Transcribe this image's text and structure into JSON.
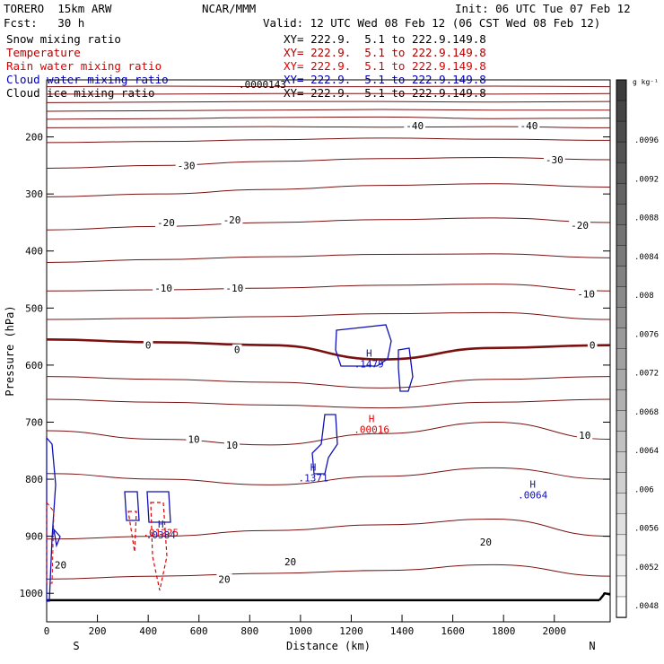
{
  "header": {
    "model": "TORERO  15km ARW",
    "center": "NCAR/MMM",
    "init": "Init: 06 UTC Tue 07 Feb 12",
    "fcst": "Fcst:   30 h",
    "valid": "Valid: 12 UTC Wed 08 Feb 12 (06 CST Wed 08 Feb 12)"
  },
  "fields": [
    {
      "label": "Snow mixing ratio",
      "xy": "XY= 222.9.  5.1 to 222.9.149.8",
      "color": "#000000"
    },
    {
      "label": "Temperature",
      "xy": "XY= 222.9.  5.1 to 222.9.149.8",
      "color": "#b00000"
    },
    {
      "label": "Rain water mixing ratio",
      "xy": "XY= 222.9.  5.1 to 222.9.149.8",
      "color": "#e00000"
    },
    {
      "label": "Cloud water mixing ratio",
      "xy": "XY= 222.9.  5.1 to 222.9.149.8",
      "color": "#0000b4"
    },
    {
      "label": "Cloud ice mixing ratio",
      "xy": "XY= 222.9.  5.1 to 222.9.149.8",
      "color": "#000000"
    }
  ],
  "colors": {
    "temperature": "#7a1010",
    "freezing": "#7a1010",
    "rain": "#e00000",
    "cloud_water": "#1010b4",
    "ground": "#000000"
  },
  "chart_data": {
    "type": "contour",
    "xlabel": "Distance (km)",
    "ylabel": "Pressure (hPa)",
    "xlim": [
      0,
      2220
    ],
    "ylim": [
      1050,
      100
    ],
    "xticks": [
      0,
      200,
      400,
      600,
      800,
      1000,
      1200,
      1400,
      1600,
      1800,
      2000
    ],
    "yticks": [
      200,
      300,
      400,
      500,
      600,
      700,
      800,
      900,
      1000
    ],
    "end_labels": {
      "left": "S",
      "right": "N"
    },
    "temperature_contours": [
      {
        "value": null,
        "p": [
          112,
          111,
          112,
          112,
          111,
          112
        ]
      },
      {
        "value": null,
        "p": [
          125,
          125,
          124,
          124,
          125,
          124
        ]
      },
      {
        "value": null,
        "p": [
          140,
          139,
          138,
          138,
          139,
          138
        ]
      },
      {
        "value": null,
        "p": [
          155,
          154,
          153,
          152,
          153,
          153
        ]
      },
      {
        "value": null,
        "p": [
          169,
          168,
          166,
          165,
          168,
          167
        ]
      },
      {
        "value": -40,
        "p": [
          184,
          183,
          182,
          183,
          182,
          184
        ]
      },
      {
        "value": null,
        "p": [
          210,
          208,
          205,
          202,
          204,
          206
        ]
      },
      {
        "value": -30,
        "p": [
          255,
          250,
          243,
          238,
          236,
          240
        ]
      },
      {
        "value": null,
        "p": [
          305,
          300,
          292,
          285,
          282,
          288
        ]
      },
      {
        "value": -20,
        "p": [
          363,
          357,
          350,
          345,
          342,
          350
        ]
      },
      {
        "value": null,
        "p": [
          420,
          415,
          410,
          406,
          405,
          412
        ]
      },
      {
        "value": -10,
        "p": [
          470,
          468,
          465,
          460,
          458,
          470
        ]
      },
      {
        "value": null,
        "p": [
          520,
          518,
          515,
          510,
          508,
          520
        ]
      },
      {
        "value": 0,
        "p": [
          555,
          560,
          565,
          590,
          570,
          565
        ]
      },
      {
        "value": null,
        "p": [
          620,
          625,
          630,
          640,
          625,
          620
        ]
      },
      {
        "value": null,
        "p": [
          660,
          665,
          670,
          675,
          665,
          660
        ]
      },
      {
        "value": 10,
        "p": [
          715,
          730,
          740,
          720,
          700,
          730
        ]
      },
      {
        "value": null,
        "p": [
          790,
          800,
          810,
          795,
          780,
          800
        ]
      },
      {
        "value": 20,
        "p": [
          905,
          900,
          890,
          880,
          870,
          900
        ]
      },
      {
        "value": null,
        "p": [
          975,
          970,
          965,
          960,
          950,
          970
        ]
      }
    ],
    "contour_labels": [
      {
        "x": 1450,
        "p": 180,
        "text": "-40"
      },
      {
        "x": 1900,
        "p": 180,
        "text": "-40"
      },
      {
        "x": 550,
        "p": 250,
        "text": "-30"
      },
      {
        "x": 2000,
        "p": 240,
        "text": "-30"
      },
      {
        "x": 470,
        "p": 350,
        "text": "-20"
      },
      {
        "x": 730,
        "p": 345,
        "text": "-20"
      },
      {
        "x": 2100,
        "p": 355,
        "text": "-20"
      },
      {
        "x": 460,
        "p": 465,
        "text": "-10"
      },
      {
        "x": 740,
        "p": 465,
        "text": "-10"
      },
      {
        "x": 2125,
        "p": 475,
        "text": "-10"
      },
      {
        "x": 400,
        "p": 565,
        "text": "0"
      },
      {
        "x": 750,
        "p": 573,
        "text": "0"
      },
      {
        "x": 2150,
        "p": 565,
        "text": "0"
      },
      {
        "x": 580,
        "p": 730,
        "text": "10"
      },
      {
        "x": 730,
        "p": 740,
        "text": "10"
      },
      {
        "x": 2120,
        "p": 723,
        "text": "10"
      },
      {
        "x": 1730,
        "p": 910,
        "text": "20"
      },
      {
        "x": 700,
        "p": 975,
        "text": "20"
      },
      {
        "x": 960,
        "p": 945,
        "text": "20"
      },
      {
        "x": 55,
        "p": 950,
        "text": "20"
      }
    ],
    "maxima": [
      {
        "x": 1270,
        "p": 585,
        "letter": "H",
        "value": ".1479",
        "field": "cloud_water"
      },
      {
        "x": 1280,
        "p": 700,
        "letter": "H",
        "value": ".00016",
        "field": "rain"
      },
      {
        "x": 1050,
        "p": 785,
        "letter": "H",
        "value": ".1371",
        "field": "cloud_water"
      },
      {
        "x": 1915,
        "p": 815,
        "letter": "H",
        "value": ".0064",
        "field": "cloud_water"
      },
      {
        "x": 450,
        "p": 885,
        "letter": "H",
        "value": ".0384",
        "field": "cloud_water"
      },
      {
        "x": 450,
        "p": 900,
        "letter": "",
        "value": ".01225",
        "field": "rain"
      },
      {
        "x": 850,
        "p": 114,
        "letter": "",
        "value": ".0000143",
        "field": "snow"
      }
    ],
    "colorbar": {
      "unit": "g kg⁻¹",
      "ticks": [
        ".0096",
        ".0092",
        ".0088",
        ".0084",
        ".008",
        ".0076",
        ".0072",
        ".0068",
        ".0064",
        ".006",
        ".0056",
        ".0052",
        ".0048"
      ]
    }
  }
}
